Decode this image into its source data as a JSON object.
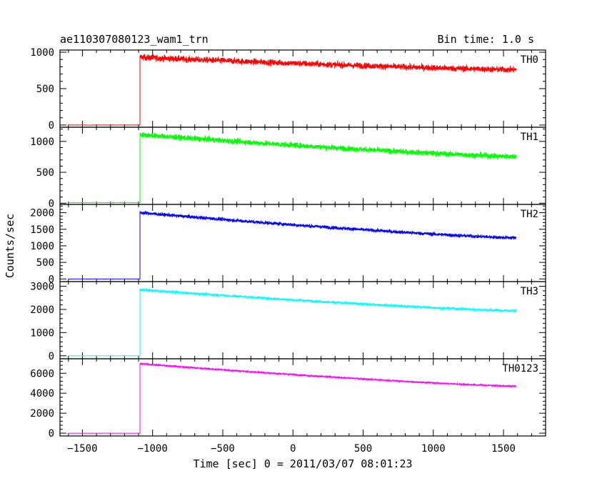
{
  "header": {
    "title": "ae110307080123_wam1_trn",
    "bin_time": "Bin time: 1.0 s"
  },
  "axis": {
    "xlabel": "Time [sec] 0 = 2011/03/07 08:01:23",
    "ylabel": "Counts/sec",
    "xlim": [
      -1660,
      1800
    ],
    "x_ticks": [
      -1500,
      -1000,
      -500,
      0,
      500,
      1000,
      1500
    ],
    "x_tick_labels": [
      "−1500",
      "−1000",
      "−500",
      "0",
      "500",
      "1000",
      "1500"
    ]
  },
  "chart_data": [
    {
      "type": "line",
      "series": [
        {
          "name": "TH0",
          "color": "#ff0000"
        }
      ],
      "x_start": -1600,
      "x_jump": -1090,
      "x_end": 1590,
      "pre_level": 0,
      "level_start": 930,
      "level_end": 760,
      "noise": 40,
      "ylim": [
        -30,
        1030
      ],
      "y_ticks": [
        0,
        500,
        1000
      ],
      "y_tick_labels": [
        "0",
        "500",
        "1000"
      ]
    },
    {
      "type": "line",
      "series": [
        {
          "name": "TH1",
          "color": "#00ff00"
        }
      ],
      "x_start": -1600,
      "x_jump": -1090,
      "x_end": 1590,
      "pre_level": 10,
      "level_start": 1110,
      "level_end": 755,
      "noise": 42,
      "ylim": [
        -20,
        1230
      ],
      "y_ticks": [
        0,
        500,
        1000
      ],
      "y_tick_labels": [
        "0",
        "500",
        "1000"
      ]
    },
    {
      "type": "line",
      "series": [
        {
          "name": "TH2",
          "color": "#0000ff"
        }
      ],
      "x_start": -1600,
      "x_jump": -1090,
      "x_end": 1590,
      "pre_level": 0,
      "level_start": 2000,
      "level_end": 1240,
      "noise": 50,
      "ylim": [
        -80,
        2250
      ],
      "y_ticks": [
        0,
        500,
        1000,
        1500,
        2000
      ],
      "y_tick_labels": [
        "0",
        "500",
        "1000",
        "1500",
        "2000"
      ]
    },
    {
      "type": "line",
      "series": [
        {
          "name": "TH3",
          "color": "#00ffff"
        }
      ],
      "x_start": -1600,
      "x_jump": -1090,
      "x_end": 1590,
      "pre_level": 0,
      "level_start": 2850,
      "level_end": 1940,
      "noise": 55,
      "ylim": [
        -130,
        3200
      ],
      "y_ticks": [
        0,
        1000,
        2000,
        3000
      ],
      "y_tick_labels": [
        "0",
        "1000",
        "2000",
        "3000"
      ]
    },
    {
      "type": "line",
      "series": [
        {
          "name": "TH0123",
          "color": "#ff00ff"
        }
      ],
      "x_start": -1600,
      "x_jump": -1090,
      "x_end": 1590,
      "pre_level": 0,
      "level_start": 6950,
      "level_end": 4700,
      "noise": 75,
      "ylim": [
        -280,
        7450
      ],
      "y_ticks": [
        0,
        2000,
        4000,
        6000
      ],
      "y_tick_labels": [
        "0",
        "2000",
        "4000",
        "6000"
      ]
    }
  ]
}
